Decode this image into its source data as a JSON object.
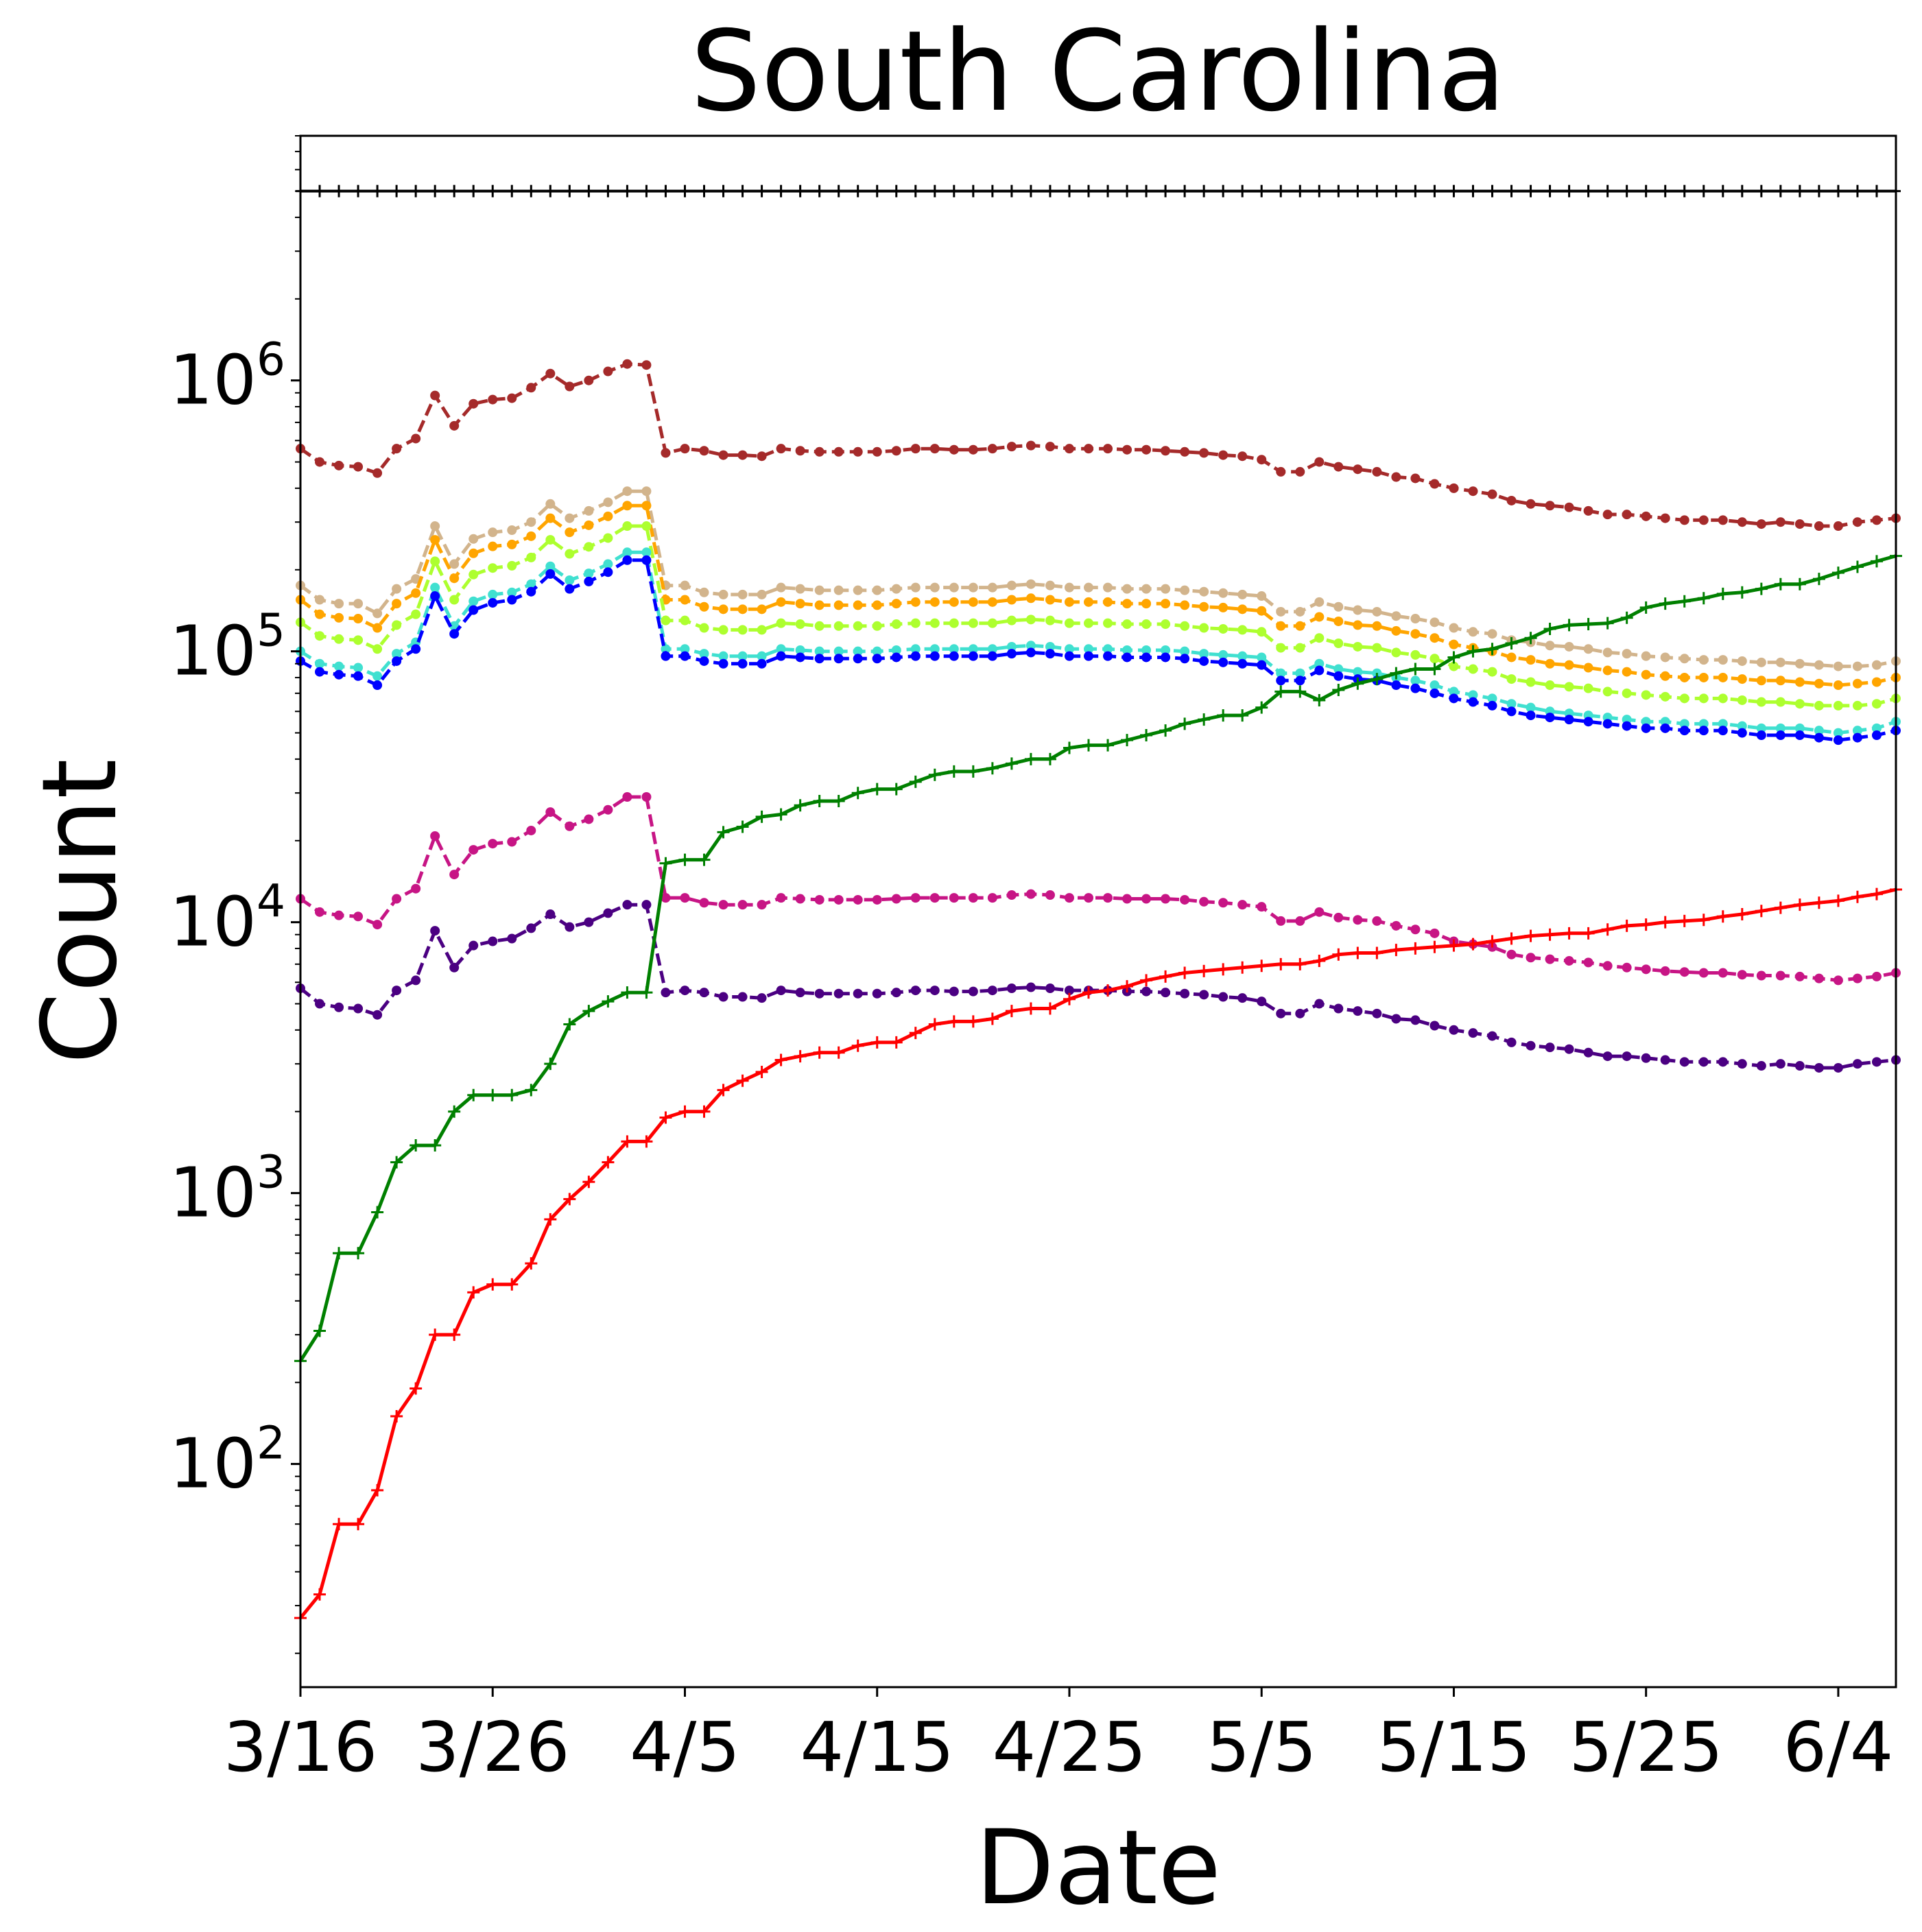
{
  "chart_data": {
    "type": "line",
    "title": "South Carolina",
    "xlabel": "Date",
    "ylabel": "Count",
    "yscale": "log",
    "ylim": [
      15,
      8000000
    ],
    "x_tick_labels": [
      "3/16",
      "3/26",
      "4/5",
      "4/15",
      "4/25",
      "5/5",
      "5/15",
      "5/25",
      "6/4"
    ],
    "y_tick_labels": [
      {
        "base": "10",
        "exp": "2",
        "value": 100
      },
      {
        "base": "10",
        "exp": "3",
        "value": 1000
      },
      {
        "base": "10",
        "exp": "4",
        "value": 10000
      },
      {
        "base": "10",
        "exp": "5",
        "value": 100000
      },
      {
        "base": "10",
        "exp": "6",
        "value": 1000000
      }
    ],
    "start_date": "3/16",
    "num_days": 84,
    "reference_line": {
      "value": 5000000,
      "color": "#000000",
      "marker": "plus"
    },
    "grid": false,
    "series": [
      {
        "color": "#a52a2a",
        "style": "dashed-dot",
        "values": [
          560000,
          500000,
          485000,
          480000,
          455000,
          560000,
          610000,
          880000,
          680000,
          820000,
          850000,
          860000,
          940000,
          1060000,
          950000,
          1000000,
          1080000,
          1150000,
          1140000,
          540000,
          560000,
          550000,
          530000,
          530000,
          525000,
          560000,
          550000,
          545000,
          545000,
          545000,
          545000,
          550000,
          560000,
          560000,
          555000,
          555000,
          560000,
          570000,
          575000,
          570000,
          560000,
          560000,
          560000,
          555000,
          555000,
          550000,
          545000,
          540000,
          530000,
          525000,
          510000,
          460000,
          460000,
          500000,
          480000,
          470000,
          460000,
          440000,
          435000,
          415000,
          400000,
          390000,
          380000,
          360000,
          350000,
          345000,
          340000,
          330000,
          320000,
          320000,
          315000,
          310000,
          305000,
          305000,
          305000,
          300000,
          295000,
          300000,
          295000,
          290000,
          290000,
          300000,
          305000,
          310000
        ]
      },
      {
        "color": "#d2b48c",
        "style": "dashed-dot",
        "values": [
          175000,
          155000,
          150000,
          150000,
          138000,
          170000,
          185000,
          290000,
          210000,
          260000,
          275000,
          280000,
          300000,
          350000,
          310000,
          330000,
          355000,
          390000,
          390000,
          175000,
          175000,
          165000,
          162000,
          162000,
          162000,
          172000,
          170000,
          168000,
          168000,
          168000,
          168000,
          170000,
          172000,
          172000,
          172000,
          172000,
          172000,
          175000,
          177000,
          175000,
          172000,
          172000,
          172000,
          170000,
          170000,
          170000,
          168000,
          166000,
          164000,
          162000,
          160000,
          140000,
          140000,
          152000,
          146000,
          142000,
          140000,
          135000,
          132000,
          128000,
          122000,
          118000,
          116000,
          110000,
          108000,
          105000,
          104000,
          102000,
          99000,
          98000,
          96000,
          95000,
          94000,
          93000,
          93000,
          92000,
          91000,
          91000,
          90000,
          89000,
          88000,
          88000,
          89000,
          92000
        ]
      },
      {
        "color": "#ffa500",
        "style": "dashed-dot",
        "values": [
          155000,
          137000,
          133000,
          132000,
          122000,
          150000,
          164000,
          258000,
          186000,
          230000,
          244000,
          248000,
          266000,
          310000,
          275000,
          292000,
          315000,
          345000,
          345000,
          155000,
          155000,
          146000,
          143000,
          143000,
          143000,
          152000,
          150000,
          148000,
          148000,
          148000,
          148000,
          150000,
          152000,
          152000,
          152000,
          152000,
          152000,
          155000,
          157000,
          155000,
          152000,
          152000,
          152000,
          150000,
          150000,
          150000,
          148000,
          146000,
          145000,
          143000,
          141000,
          124000,
          124000,
          134000,
          129000,
          125000,
          124000,
          119000,
          116000,
          112000,
          106000,
          103000,
          100000,
          95000,
          93000,
          90000,
          89000,
          87000,
          85000,
          84000,
          82000,
          81000,
          80000,
          80000,
          80000,
          79000,
          78000,
          78000,
          77000,
          76000,
          75000,
          76000,
          77000,
          80000
        ]
      },
      {
        "color": "#adff2f",
        "style": "dashed-dot",
        "values": [
          128000,
          114000,
          111000,
          110000,
          102000,
          125000,
          137000,
          215000,
          155000,
          192000,
          203000,
          207000,
          222000,
          258000,
          229000,
          243000,
          262000,
          290000,
          290000,
          130000,
          130000,
          122000,
          120000,
          120000,
          120000,
          127000,
          126000,
          124000,
          124000,
          124000,
          124000,
          126000,
          127000,
          127000,
          127000,
          127000,
          127000,
          130000,
          131000,
          130000,
          127000,
          127000,
          127000,
          126000,
          126000,
          126000,
          124000,
          122000,
          121000,
          120000,
          118000,
          103000,
          103000,
          112000,
          107000,
          104000,
          103000,
          99000,
          97000,
          94000,
          88000,
          86000,
          84000,
          79000,
          77000,
          75000,
          74000,
          73000,
          71000,
          70000,
          69000,
          68000,
          67000,
          67000,
          67000,
          66000,
          65000,
          65000,
          64000,
          63000,
          63000,
          63000,
          64000,
          67000
        ]
      },
      {
        "color": "#40e0d0",
        "style": "dashed-dot",
        "values": [
          100000,
          90000,
          88000,
          87000,
          81000,
          98000,
          108000,
          172000,
          124000,
          153000,
          162000,
          165000,
          177000,
          206000,
          183000,
          194000,
          210000,
          232000,
          232000,
          102000,
          102000,
          98000,
          96000,
          96000,
          96000,
          102000,
          101000,
          100000,
          100000,
          100000,
          100000,
          101000,
          102000,
          102000,
          102000,
          102000,
          102000,
          104000,
          105000,
          104000,
          102000,
          102000,
          102000,
          101000,
          101000,
          101000,
          100000,
          98000,
          97000,
          96000,
          95000,
          83000,
          83000,
          90000,
          86000,
          84000,
          83000,
          80000,
          78000,
          75000,
          71000,
          69000,
          67000,
          64000,
          62000,
          60000,
          59000,
          58000,
          57000,
          56000,
          55000,
          55000,
          54000,
          54000,
          54000,
          53000,
          52000,
          52000,
          52000,
          51000,
          50000,
          51000,
          52000,
          55000
        ]
      },
      {
        "color": "#0000ff",
        "style": "dashed-dot",
        "values": [
          92000,
          84000,
          82000,
          81000,
          75000,
          92000,
          102000,
          160000,
          116000,
          142000,
          151000,
          155000,
          166000,
          193000,
          170000,
          181000,
          196000,
          217000,
          217000,
          96000,
          96000,
          92000,
          90000,
          90000,
          90000,
          96000,
          95000,
          94000,
          94000,
          94000,
          94000,
          95000,
          96000,
          96000,
          96000,
          96000,
          96000,
          98000,
          99000,
          98000,
          96000,
          96000,
          96000,
          95000,
          95000,
          95000,
          94000,
          92000,
          91000,
          90000,
          89000,
          78000,
          78000,
          85000,
          81000,
          79000,
          78000,
          75000,
          73000,
          70000,
          67000,
          65000,
          63000,
          60000,
          58000,
          57000,
          56000,
          55000,
          54000,
          53000,
          52000,
          52000,
          51000,
          51000,
          51000,
          50000,
          49000,
          49000,
          49000,
          48000,
          47000,
          48000,
          49000,
          51000
        ]
      },
      {
        "color": "#c71585",
        "style": "dashed-dot",
        "values": [
          12200,
          10900,
          10600,
          10500,
          9800,
          12200,
          13300,
          20800,
          15000,
          18500,
          19500,
          19800,
          21800,
          25500,
          22600,
          24000,
          26000,
          29000,
          29000,
          12300,
          12300,
          11800,
          11600,
          11600,
          11600,
          12300,
          12200,
          12100,
          12100,
          12100,
          12100,
          12200,
          12300,
          12300,
          12300,
          12300,
          12300,
          12600,
          12700,
          12600,
          12300,
          12300,
          12300,
          12200,
          12200,
          12200,
          12100,
          11900,
          11800,
          11600,
          11400,
          10100,
          10100,
          10900,
          10400,
          10200,
          10100,
          9700,
          9400,
          9100,
          8500,
          8300,
          8100,
          7600,
          7400,
          7300,
          7200,
          7100,
          6900,
          6800,
          6700,
          6600,
          6550,
          6500,
          6500,
          6400,
          6350,
          6350,
          6300,
          6200,
          6100,
          6200,
          6300,
          6500
        ]
      },
      {
        "color": "#4b0082",
        "style": "dashed-dot",
        "values": [
          5700,
          5000,
          4850,
          4800,
          4550,
          5600,
          6100,
          9300,
          6800,
          8200,
          8500,
          8700,
          9500,
          10700,
          9600,
          10000,
          10800,
          11600,
          11600,
          5500,
          5600,
          5500,
          5300,
          5300,
          5250,
          5600,
          5500,
          5450,
          5450,
          5450,
          5450,
          5500,
          5600,
          5600,
          5550,
          5550,
          5600,
          5700,
          5750,
          5700,
          5600,
          5600,
          5600,
          5550,
          5550,
          5500,
          5450,
          5400,
          5300,
          5250,
          5100,
          4600,
          4600,
          5000,
          4800,
          4700,
          4600,
          4400,
          4350,
          4150,
          4000,
          3900,
          3800,
          3600,
          3500,
          3450,
          3400,
          3300,
          3200,
          3200,
          3150,
          3100,
          3050,
          3050,
          3050,
          3000,
          2950,
          3000,
          2950,
          2900,
          2900,
          3000,
          3050,
          3100
        ]
      },
      {
        "color": "#008000",
        "style": "solid-plus",
        "values": [
          240,
          310,
          600,
          600,
          850,
          1300,
          1500,
          1500,
          2000,
          2300,
          2300,
          2300,
          2400,
          3000,
          4200,
          4700,
          5100,
          5500,
          5500,
          16500,
          17000,
          17000,
          21500,
          22500,
          24500,
          25000,
          27000,
          28000,
          28000,
          30000,
          31000,
          31000,
          33000,
          35000,
          36000,
          36000,
          37000,
          38500,
          40000,
          40000,
          44000,
          45000,
          45000,
          47000,
          49000,
          51000,
          54000,
          56000,
          58000,
          58000,
          62000,
          71000,
          71000,
          66000,
          72000,
          76000,
          79000,
          83000,
          86000,
          86000,
          95000,
          100000,
          102000,
          107000,
          112000,
          121000,
          125000,
          126000,
          127000,
          133000,
          145000,
          150000,
          153000,
          157000,
          163000,
          165000,
          170000,
          177000,
          177000,
          185000,
          195000,
          205000,
          215000,
          225000
        ]
      },
      {
        "color": "#ff0000",
        "style": "solid-plus",
        "values": [
          27,
          33,
          60,
          60,
          80,
          150,
          190,
          300,
          300,
          430,
          460,
          460,
          550,
          800,
          950,
          1100,
          1300,
          1550,
          1550,
          1900,
          2000,
          2000,
          2400,
          2600,
          2800,
          3100,
          3200,
          3300,
          3300,
          3500,
          3600,
          3600,
          3900,
          4200,
          4300,
          4300,
          4400,
          4700,
          4800,
          4800,
          5200,
          5500,
          5600,
          5800,
          6100,
          6300,
          6500,
          6600,
          6700,
          6800,
          6900,
          7000,
          7000,
          7200,
          7600,
          7700,
          7700,
          7900,
          8000,
          8100,
          8200,
          8300,
          8500,
          8700,
          8900,
          9000,
          9100,
          9100,
          9400,
          9700,
          9800,
          10000,
          10100,
          10200,
          10500,
          10700,
          11000,
          11300,
          11600,
          11800,
          12000,
          12400,
          12700,
          13200
        ]
      }
    ]
  }
}
